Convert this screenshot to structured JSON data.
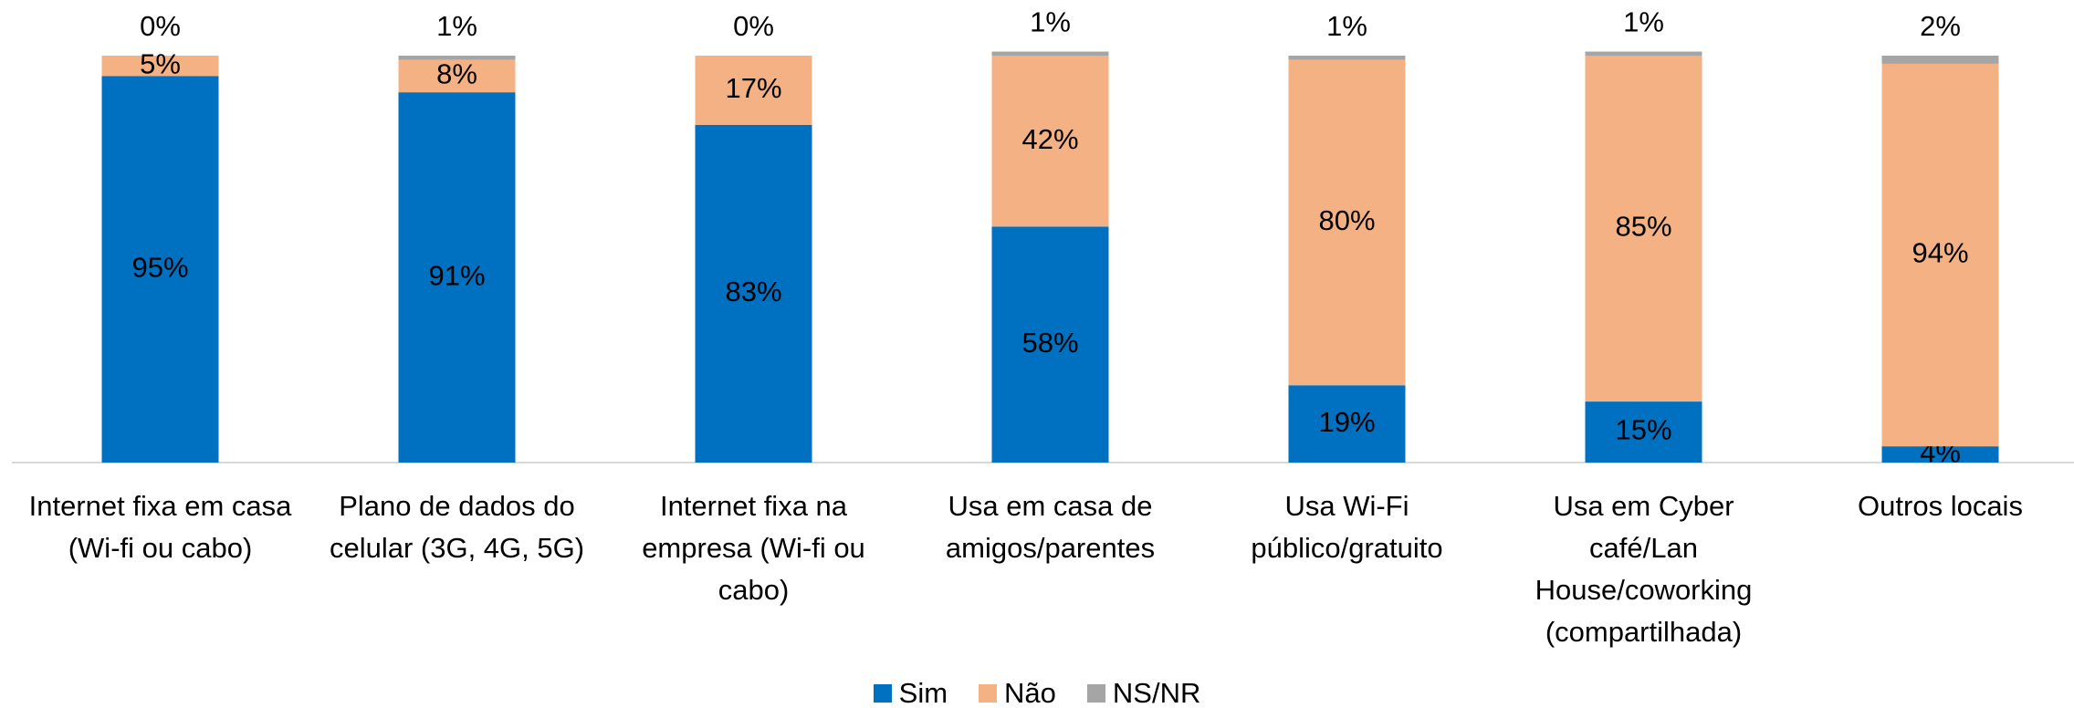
{
  "chart_data": {
    "type": "stacked_bar",
    "categories": [
      "Internet fixa em casa (Wi-fi ou cabo)",
      "Plano de dados do celular (3G, 4G, 5G)",
      "Internet fixa na empresa (Wi-fi ou cabo)",
      "Usa em casa de amigos/parentes",
      "Usa Wi-Fi público/gratuito",
      "Usa em Cyber café/Lan House/coworking (compartilhada)",
      "Outros locais"
    ],
    "series": [
      {
        "name": "Sim",
        "color": "#0070c0",
        "values": [
          95,
          91,
          83,
          58,
          19,
          15,
          4
        ],
        "value_labels": [
          "95%",
          "91%",
          "83%",
          "58%",
          "19%",
          "15%",
          "4%"
        ]
      },
      {
        "name": "Não",
        "color": "#f4b183",
        "values": [
          5,
          8,
          17,
          42,
          80,
          85,
          94
        ],
        "value_labels": [
          "5%",
          "8%",
          "17%",
          "42%",
          "80%",
          "85%",
          "94%"
        ]
      },
      {
        "name": "NS/NR",
        "color": "#a5a5a5",
        "values": [
          0,
          1,
          0,
          1,
          1,
          1,
          2
        ],
        "value_labels": [
          "0%",
          "1%",
          "0%",
          "1%",
          "1%",
          "1%",
          "2%"
        ]
      }
    ],
    "ylim": [
      0,
      100
    ],
    "legend": "bottom"
  }
}
